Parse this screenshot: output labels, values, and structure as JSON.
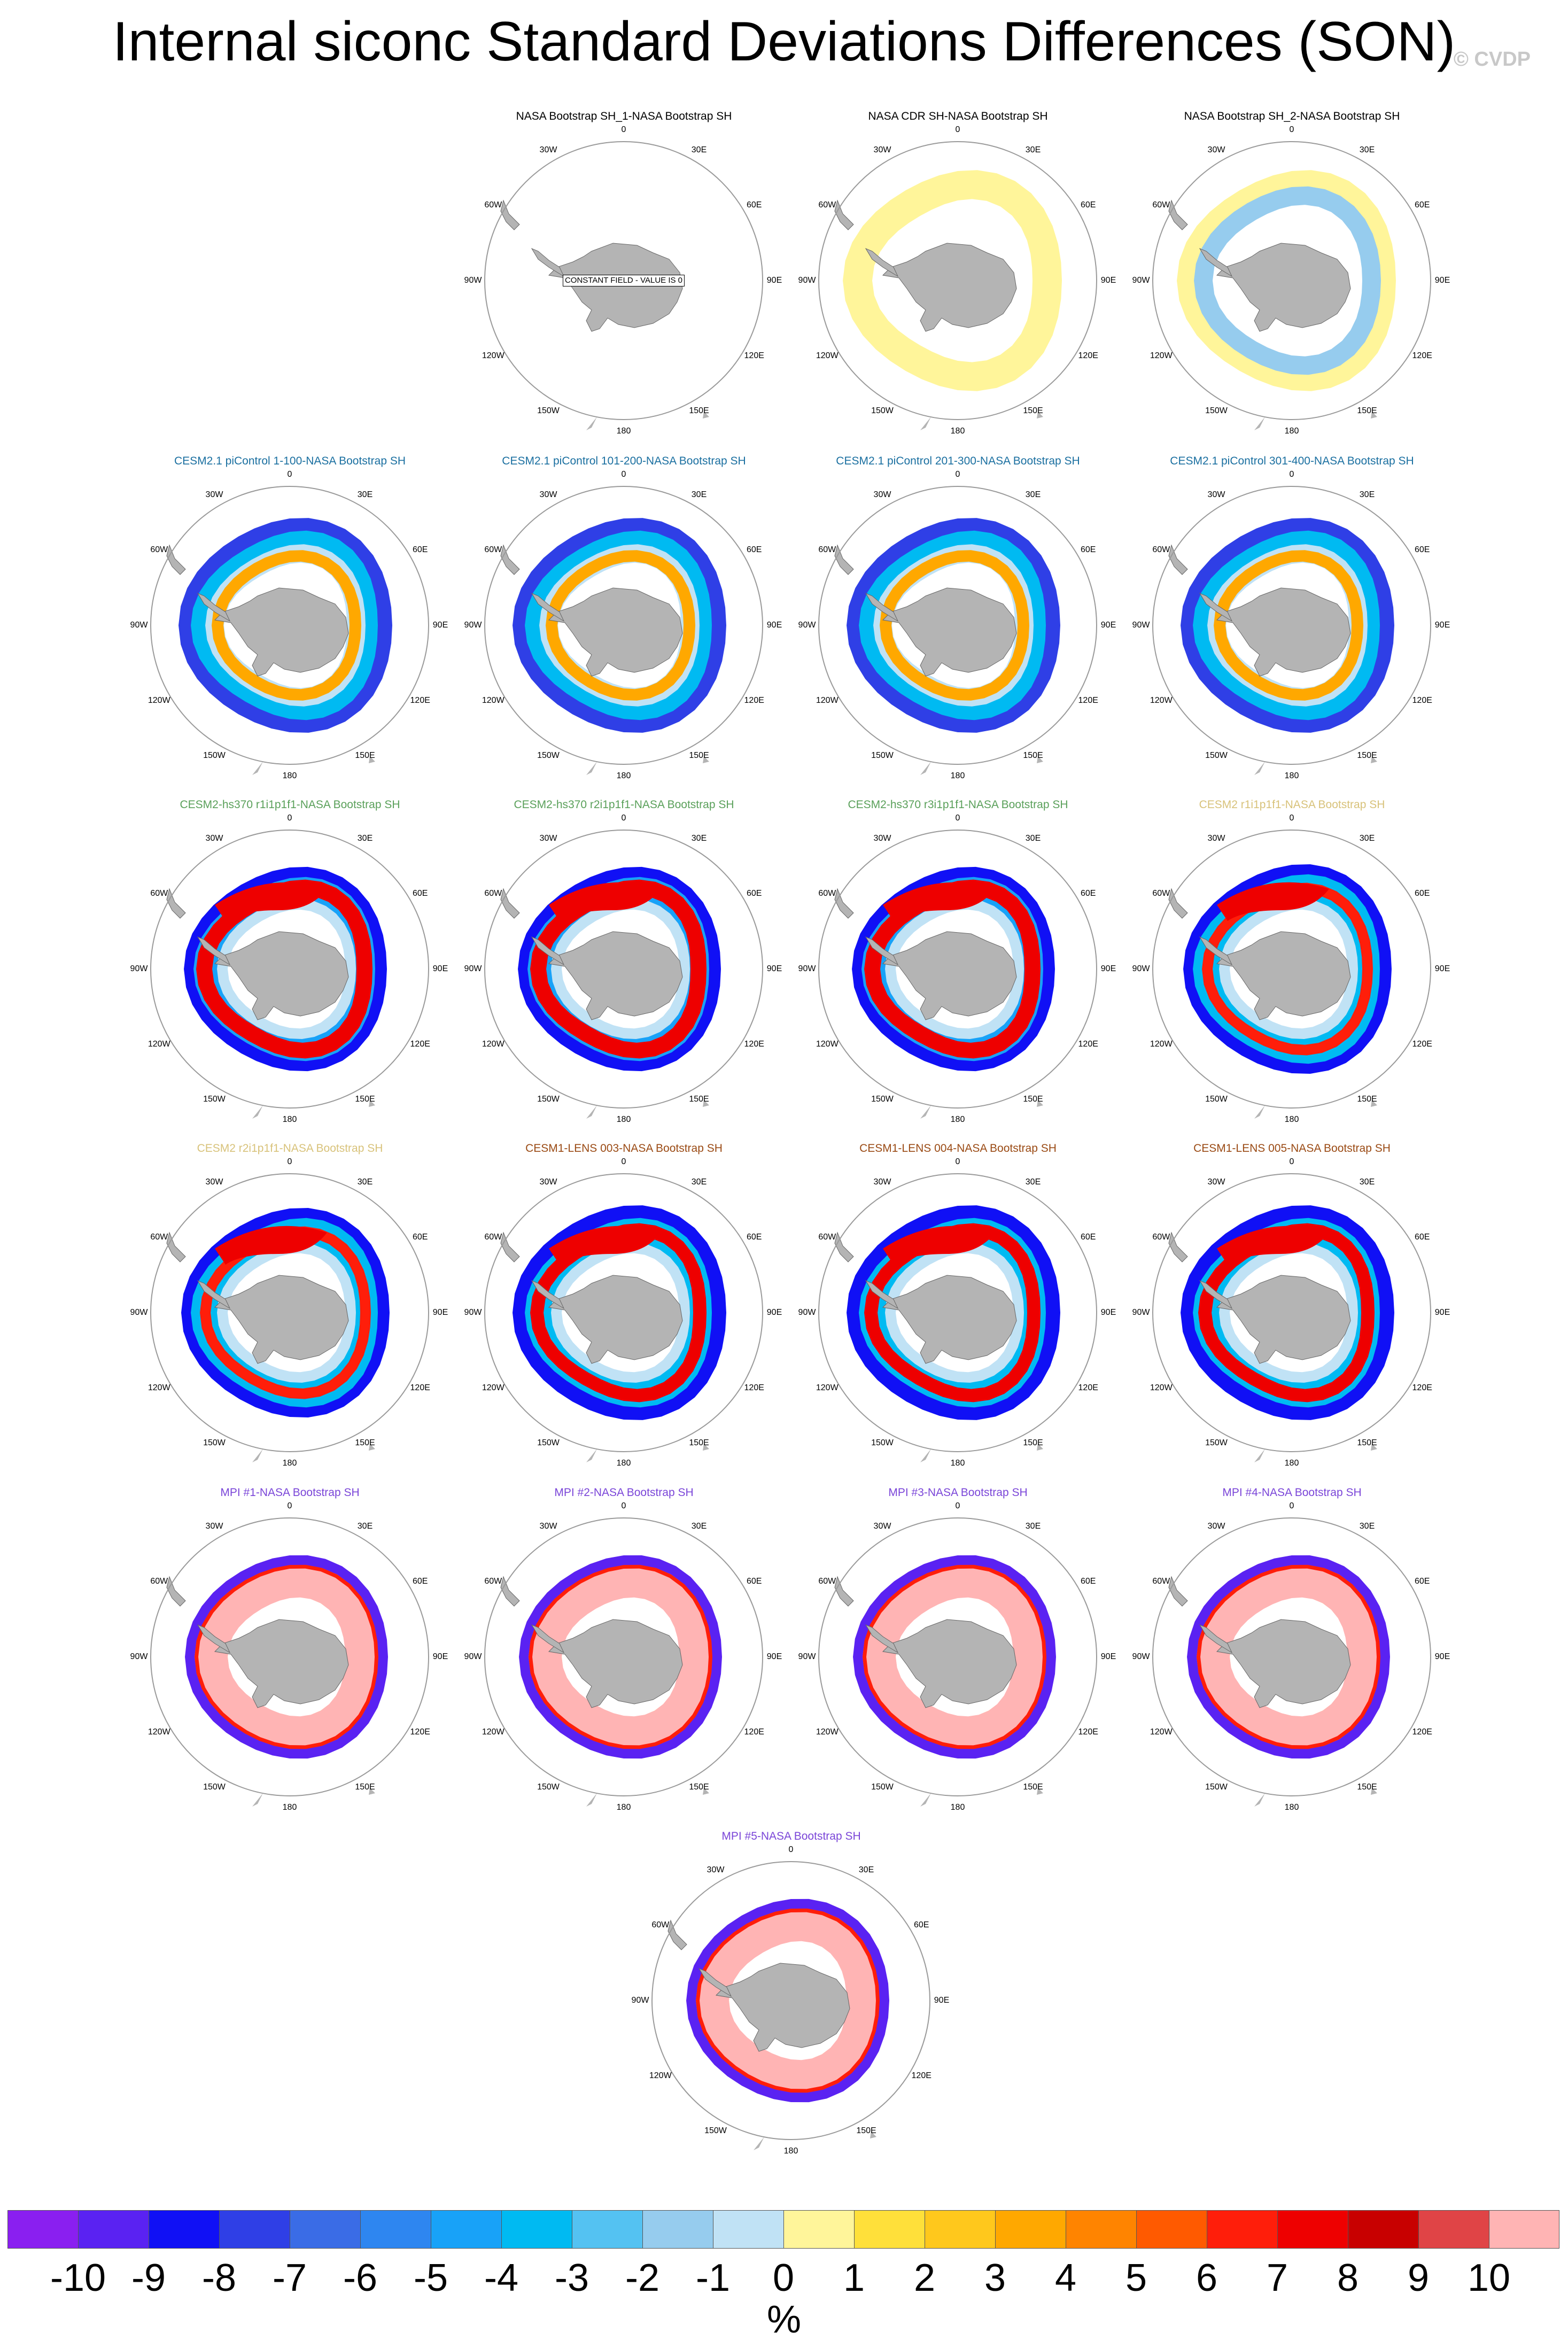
{
  "figure": {
    "title": "Internal siconc Standard Deviations Differences (SON)",
    "credit": "© CVDP",
    "units": "%"
  },
  "map_ticks": [
    "0",
    "30E",
    "60E",
    "90E",
    "120E",
    "150E",
    "180",
    "150W",
    "120W",
    "90W",
    "60W",
    "30W"
  ],
  "colors": {
    "land": "#b4b4b4",
    "circle": "#9a9a9a",
    "title_obs": "#000000",
    "title_cesm21": "#1a6fa0",
    "title_hs370": "#5aa05a",
    "title_cesm2_lens": "#d8c27a",
    "title_cesm1_lens": "#9a4a14",
    "title_mpi": "#7a45d8"
  },
  "chart_data": {
    "type": "heatmap",
    "description_of_fields": "polar stereographic maps of Southern Hemisphere sea-ice concentration standard deviation differences",
    "levels": [
      -10,
      -9,
      -8,
      -7,
      -6,
      -5,
      -4,
      -3,
      -2,
      -1,
      0,
      1,
      2,
      3,
      4,
      5,
      6,
      7,
      8,
      9,
      10
    ],
    "colorbar_labels": [
      "-10",
      "-9",
      "-8",
      "-7",
      "-6",
      "-5",
      "-4",
      "-3",
      "-2",
      "-1",
      "0",
      "1",
      "2",
      "3",
      "4",
      "5",
      "6",
      "7",
      "8",
      "9",
      "10"
    ],
    "colorbar_colors": [
      "#8a1ff0",
      "#5a22f2",
      "#1010f5",
      "#2f3fe6",
      "#3a6ce6",
      "#2e86f0",
      "#18a2f8",
      "#00baf2",
      "#54c2f2",
      "#96ccee",
      "#c0e2f5",
      "#fff59a",
      "#ffe03a",
      "#ffc81c",
      "#ffa800",
      "#ff8400",
      "#ff5a00",
      "#ff1e0a",
      "#ee0000",
      "#c80000",
      "#e04446",
      "#ffb4b4"
    ],
    "panels": [
      {
        "title": "NASA Bootstrap SH_1-NASA Bootstrap SH",
        "group": "obs",
        "note": "CONSTANT FIELD - VALUE IS 0",
        "style": "blank"
      },
      {
        "title": "NASA CDR SH-NASA Bootstrap SH",
        "group": "obs",
        "note": "",
        "style": "cdr"
      },
      {
        "title": "NASA Bootstrap SH_2-NASA Bootstrap SH",
        "group": "obs",
        "note": "",
        "style": "bs2"
      },
      {
        "title": "CESM2.1 piControl 1-100-NASA Bootstrap SH",
        "group": "cesm21",
        "note": "",
        "style": "cesm21"
      },
      {
        "title": "CESM2.1 piControl 101-200-NASA Bootstrap SH",
        "group": "cesm21",
        "note": "",
        "style": "cesm21"
      },
      {
        "title": "CESM2.1 piControl 201-300-NASA Bootstrap SH",
        "group": "cesm21",
        "note": "",
        "style": "cesm21"
      },
      {
        "title": "CESM2.1 piControl 301-400-NASA Bootstrap SH",
        "group": "cesm21",
        "note": "",
        "style": "cesm21"
      },
      {
        "title": "CESM2-hs370 r1i1p1f1-NASA Bootstrap SH",
        "group": "hs370",
        "note": "",
        "style": "hs370"
      },
      {
        "title": "CESM2-hs370 r2i1p1f1-NASA Bootstrap SH",
        "group": "hs370",
        "note": "",
        "style": "hs370"
      },
      {
        "title": "CESM2-hs370 r3i1p1f1-NASA Bootstrap SH",
        "group": "hs370",
        "note": "",
        "style": "hs370"
      },
      {
        "title": "CESM2 r1i1p1f1-NASA Bootstrap SH",
        "group": "cesm2_lens",
        "note": "",
        "style": "lens2"
      },
      {
        "title": "CESM2 r2i1p1f1-NASA Bootstrap SH",
        "group": "cesm2_lens",
        "note": "",
        "style": "lens2"
      },
      {
        "title": "CESM1-LENS 003-NASA Bootstrap SH",
        "group": "cesm1_lens",
        "note": "",
        "style": "lens1"
      },
      {
        "title": "CESM1-LENS 004-NASA Bootstrap SH",
        "group": "cesm1_lens",
        "note": "",
        "style": "lens1"
      },
      {
        "title": "CESM1-LENS 005-NASA Bootstrap SH",
        "group": "cesm1_lens",
        "note": "",
        "style": "lens1"
      },
      {
        "title": "MPI #1-NASA Bootstrap SH",
        "group": "mpi",
        "note": "",
        "style": "mpi"
      },
      {
        "title": "MPI #2-NASA Bootstrap SH",
        "group": "mpi",
        "note": "",
        "style": "mpi"
      },
      {
        "title": "MPI #3-NASA Bootstrap SH",
        "group": "mpi",
        "note": "",
        "style": "mpi"
      },
      {
        "title": "MPI #4-NASA Bootstrap SH",
        "group": "mpi",
        "note": "",
        "style": "mpi"
      },
      {
        "title": "MPI #5-NASA Bootstrap SH",
        "group": "mpi",
        "note": "",
        "style": "mpi"
      }
    ]
  }
}
